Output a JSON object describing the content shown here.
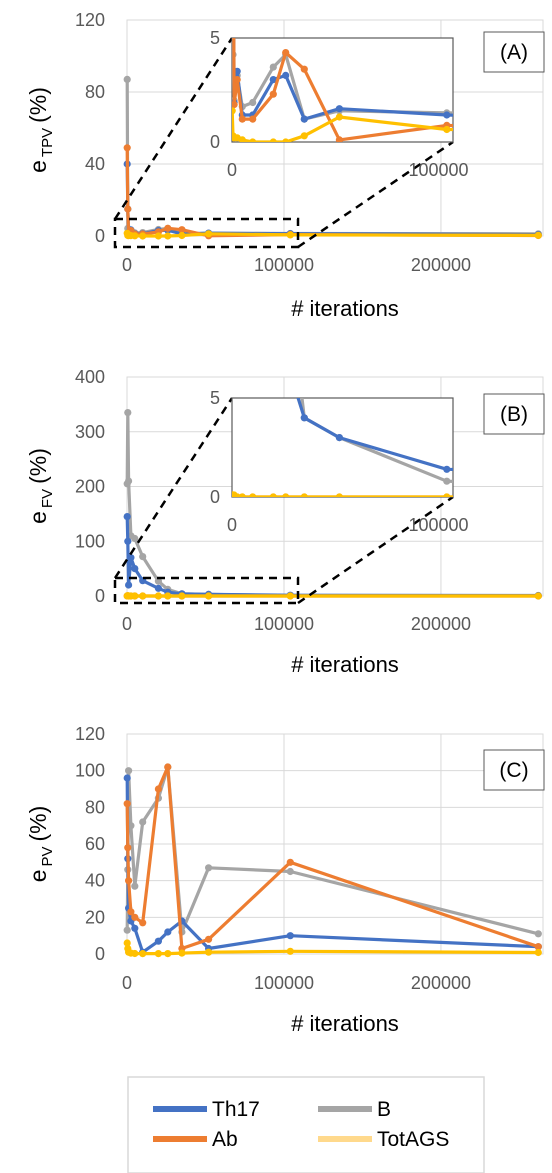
{
  "colors": {
    "Th17": "#4472C4",
    "Ab": "#ED7D31",
    "B": "#A5A5A5",
    "TotAGS": "#FFC000"
  },
  "legend": {
    "items": [
      {
        "key": "Th17",
        "label": "Th17",
        "color": "#4472C4"
      },
      {
        "key": "B",
        "label": "B",
        "color": "#A5A5A5"
      },
      {
        "key": "Ab",
        "label": "Ab",
        "color": "#ED7D31"
      },
      {
        "key": "TotAGS",
        "label": "TotAGS",
        "color": "#FFD98C"
      }
    ]
  },
  "chart_data": [
    {
      "panel": "A",
      "tag": "(A)",
      "type": "line",
      "ylabel": "e",
      "ylabel_sub": "TPV",
      "ylabel_suffix": "(%)",
      "xlabel": "# iterations",
      "xlim": [
        0,
        265000
      ],
      "ylim": [
        0,
        120
      ],
      "xticks": [
        0,
        100000,
        200000
      ],
      "yticks": [
        0,
        40,
        80,
        120
      ],
      "x": [
        100,
        500,
        1000,
        2500,
        5000,
        10000,
        20000,
        26000,
        35000,
        52000,
        104000,
        262000
      ],
      "series": [
        {
          "name": "Th17",
          "values": [
            40,
            15,
            1.9,
            3.4,
            1.3,
            1.3,
            3.0,
            3.2,
            1.1,
            1.6,
            1.3,
            0.8
          ]
        },
        {
          "name": "Ab",
          "values": [
            49,
            15,
            1.8,
            3.0,
            1.1,
            1.1,
            2.3,
            4.3,
            3.5,
            0.1,
            0.8,
            0.3
          ]
        },
        {
          "name": "B",
          "values": [
            87,
            4.2,
            2.0,
            3.2,
            1.7,
            1.9,
            3.6,
            4.2,
            1.1,
            1.5,
            1.4,
            1.2
          ]
        },
        {
          "name": "TotAGS",
          "values": [
            1.5,
            0.3,
            0.2,
            0.2,
            0.1,
            0.0,
            0.0,
            0.0,
            0.3,
            1.2,
            0.6,
            0.4
          ]
        }
      ],
      "inset": {
        "xlim": [
          0,
          107000
        ],
        "ylim": [
          0,
          5
        ],
        "xticks": [
          0,
          100000
        ],
        "yticks": [
          0,
          5
        ]
      }
    },
    {
      "panel": "B",
      "tag": "(B)",
      "type": "line",
      "ylabel": "e",
      "ylabel_sub": "FV",
      "ylabel_suffix": "(%)",
      "xlabel": "# iterations",
      "xlim": [
        0,
        265000
      ],
      "ylim": [
        0,
        400
      ],
      "xticks": [
        0,
        100000,
        200000
      ],
      "yticks": [
        0,
        100,
        200,
        300,
        400
      ],
      "x": [
        100,
        500,
        1000,
        2500,
        5000,
        10000,
        20000,
        26000,
        35000,
        52000,
        104000,
        262000
      ],
      "series": [
        {
          "name": "Th17",
          "values": [
            145,
            100,
            20,
            70,
            50,
            28,
            14,
            7,
            4,
            3,
            1.4,
            1.0
          ]
        },
        {
          "name": "Ab",
          "values": [
            0.1,
            0.1,
            0.0,
            0.0,
            0.0,
            0.0,
            0.0,
            0.0,
            0.0,
            0.0,
            0.0,
            0.0
          ]
        },
        {
          "name": "B",
          "values": [
            205,
            335,
            210,
            110,
            105,
            72,
            27,
            12,
            4,
            3,
            0.8,
            0.3
          ]
        },
        {
          "name": "TotAGS",
          "values": [
            0.1,
            0.1,
            0.1,
            0.0,
            0.0,
            0.0,
            0.0,
            0.0,
            0.0,
            0.0,
            0.0,
            0.0
          ]
        }
      ],
      "inset": {
        "xlim": [
          0,
          107000
        ],
        "ylim": [
          0,
          5
        ],
        "xticks": [
          0,
          100000
        ],
        "yticks": [
          0,
          5
        ]
      }
    },
    {
      "panel": "C",
      "tag": "(C)",
      "type": "line",
      "ylabel": "e",
      "ylabel_sub": "PV",
      "ylabel_suffix": "(%)",
      "xlabel": "# iterations",
      "xlim": [
        0,
        265000
      ],
      "ylim": [
        0,
        120
      ],
      "xticks": [
        0,
        100000,
        200000
      ],
      "yticks": [
        0,
        20,
        40,
        60,
        80,
        100,
        120
      ],
      "x": [
        100,
        500,
        1000,
        2500,
        5000,
        10000,
        20000,
        26000,
        35000,
        52000,
        104000,
        262000
      ],
      "series": [
        {
          "name": "Th17",
          "values": [
            96,
            52,
            25,
            18,
            14,
            1,
            7,
            12,
            18,
            3,
            10,
            4
          ]
        },
        {
          "name": "Ab",
          "values": [
            82,
            58,
            40,
            23,
            20,
            17,
            90,
            102,
            3,
            8,
            50,
            4
          ]
        },
        {
          "name": "B",
          "values": [
            13,
            46,
            100,
            70,
            37,
            72,
            85,
            102,
            12,
            47,
            45,
            11
          ]
        },
        {
          "name": "TotAGS",
          "values": [
            6,
            3,
            1,
            0.5,
            0.3,
            0.2,
            0.2,
            0.2,
            0.5,
            1.0,
            1.5,
            0.8
          ]
        }
      ]
    }
  ]
}
